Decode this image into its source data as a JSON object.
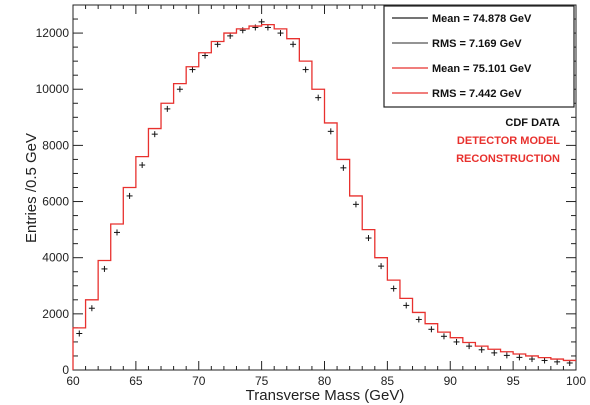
{
  "chart_data": {
    "type": "line",
    "xlabel": "Transverse Mass (GeV)",
    "ylabel": "Entries /0.5 GeV",
    "xlim": [
      60,
      100
    ],
    "ylim": [
      0,
      13000
    ],
    "x_ticks": [
      60,
      65,
      70,
      75,
      80,
      85,
      90,
      95,
      100
    ],
    "x_tick_labels": [
      "60",
      "65",
      "70",
      "75",
      "80",
      "85",
      "90",
      "95",
      "100"
    ],
    "y_ticks": [
      0,
      2000,
      4000,
      6000,
      8000,
      10000,
      12000
    ],
    "y_tick_labels": [
      "0",
      "2000",
      "4000",
      "6000",
      "8000",
      "10000",
      "12000"
    ],
    "grid": false,
    "legend_position": "top-right",
    "legend": [
      {
        "label": "Mean = 74.878 GeV",
        "color": "#222222"
      },
      {
        "label": "RMS = 7.169 GeV",
        "color": "#555555"
      },
      {
        "label": "Mean = 75.101 GeV",
        "color": "#e8312e"
      },
      {
        "label": "RMS = 7.442 GeV",
        "color": "#e8312e"
      }
    ],
    "annotations": [
      {
        "text": "CDF DATA",
        "color": "#111111"
      },
      {
        "text": "DETECTOR MODEL",
        "color": "#e8312e"
      },
      {
        "text": "RECONSTRUCTION",
        "color": "#e8312e"
      }
    ],
    "series": [
      {
        "style": "points",
        "color": "#111111",
        "x": [
          60.5,
          61.5,
          62.5,
          63.5,
          64.5,
          65.5,
          66.5,
          67.5,
          68.5,
          69.5,
          70.5,
          71.5,
          72.5,
          73.5,
          74.5,
          75,
          75.5,
          76.5,
          77.5,
          78.5,
          79.5,
          80.5,
          81.5,
          82.5,
          83.5,
          84.5,
          85.5,
          86.5,
          87.5,
          88.5,
          89.5,
          90.5,
          91.5,
          92.5,
          93.5,
          94.5,
          95.5,
          96.5,
          97.5,
          98.5,
          99.5
        ],
        "y": [
          1300,
          2200,
          3600,
          4900,
          6200,
          7300,
          8400,
          9300,
          10000,
          10700,
          11200,
          11600,
          11900,
          12100,
          12200,
          12400,
          12200,
          12000,
          11600,
          10700,
          9700,
          8500,
          7200,
          5900,
          4700,
          3700,
          2900,
          2300,
          1800,
          1450,
          1200,
          1000,
          850,
          720,
          610,
          520,
          450,
          390,
          340,
          290,
          250
        ]
      },
      {
        "style": "step",
        "color": "#e8312e",
        "x": [
          60.5,
          61.5,
          62.5,
          63.5,
          64.5,
          65.5,
          66.5,
          67.5,
          68.5,
          69.5,
          70.5,
          71.5,
          72.5,
          73.5,
          74.5,
          75.5,
          76.5,
          77.5,
          78.5,
          79.5,
          80.5,
          81.5,
          82.5,
          83.5,
          84.5,
          85.5,
          86.5,
          87.5,
          88.5,
          89.5,
          90.5,
          91.5,
          92.5,
          93.5,
          94.5,
          95.5,
          96.5,
          97.5,
          98.5,
          99.5
        ],
        "y": [
          1500,
          2500,
          3900,
          5200,
          6500,
          7600,
          8600,
          9500,
          10200,
          10800,
          11300,
          11700,
          12000,
          12150,
          12250,
          12300,
          12150,
          11800,
          11000,
          10000,
          8800,
          7500,
          6200,
          5000,
          4000,
          3200,
          2550,
          2050,
          1650,
          1350,
          1150,
          980,
          850,
          740,
          650,
          570,
          500,
          440,
          390,
          340
        ]
      }
    ]
  }
}
